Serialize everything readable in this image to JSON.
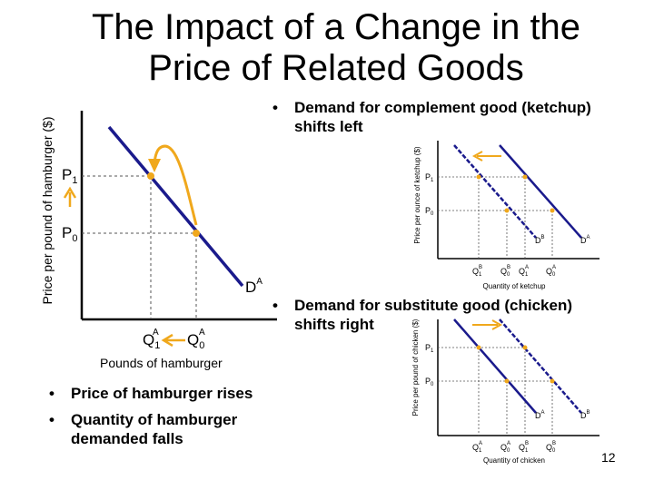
{
  "title": {
    "line1": "The Impact of a Change in the",
    "line2": "Price of Related Goods"
  },
  "bullets": {
    "complement": {
      "line1": "Demand for complement good (ketchup)",
      "line2": "shifts left"
    },
    "substitute": {
      "line1": "Demand for substitute good (chicken)",
      "line2": "shifts right"
    },
    "price_rises": "Price of hamburger rises",
    "quantity_falls": {
      "line1": "Quantity of hamburger",
      "line2": "demanded falls"
    },
    "bullet_char": "•"
  },
  "main_graph": {
    "y_axis_label": "Price per pound of hamburger ($)",
    "x_axis_label": "Pounds of hamburger",
    "p1": {
      "base": "P",
      "sub": "1"
    },
    "p0": {
      "base": "P",
      "sub": "0"
    },
    "q1": {
      "base": "Q",
      "sub": "1",
      "sup": "A"
    },
    "q0": {
      "base": "Q",
      "sub": "0",
      "sup": "A"
    },
    "demand": {
      "base": "D",
      "sup": "A"
    }
  },
  "ketchup_graph": {
    "y_axis_label": "Price per ounce of ketchup ($)",
    "x_axis_label": "Quantity of ketchup",
    "p1": {
      "base": "P",
      "sub": "1"
    },
    "p0": {
      "base": "P",
      "sub": "0"
    },
    "q_labels": [
      {
        "base": "Q",
        "sub": "1",
        "sup": "B"
      },
      {
        "base": "Q",
        "sub": "0",
        "sup": "B"
      },
      {
        "base": "Q",
        "sub": "1",
        "sup": "A"
      },
      {
        "base": "Q",
        "sub": "0",
        "sup": "A"
      }
    ],
    "demand_b": {
      "base": "D",
      "sup": "B"
    },
    "demand_a": {
      "base": "D",
      "sup": "A"
    }
  },
  "chicken_graph": {
    "y_axis_label": "Price per pound of chicken ($)",
    "x_axis_label": "Quantity of chicken",
    "p1": {
      "base": "P",
      "sub": "1"
    },
    "p0": {
      "base": "P",
      "sub": "0"
    },
    "q_labels": [
      {
        "base": "Q",
        "sub": "1",
        "sup": "A"
      },
      {
        "base": "Q",
        "sub": "0",
        "sup": "A"
      },
      {
        "base": "Q",
        "sub": "1",
        "sup": "B"
      },
      {
        "base": "Q",
        "sub": "0",
        "sup": "B"
      }
    ],
    "demand_a": {
      "base": "D",
      "sup": "A"
    },
    "demand_b": {
      "base": "D",
      "sup": "B"
    }
  },
  "page_number": "12",
  "colors": {
    "demand_line": "#1a1a8c",
    "point": "#f0a81c",
    "arrow": "#f0a81c",
    "axis": "#000000",
    "guide": "#555555"
  }
}
